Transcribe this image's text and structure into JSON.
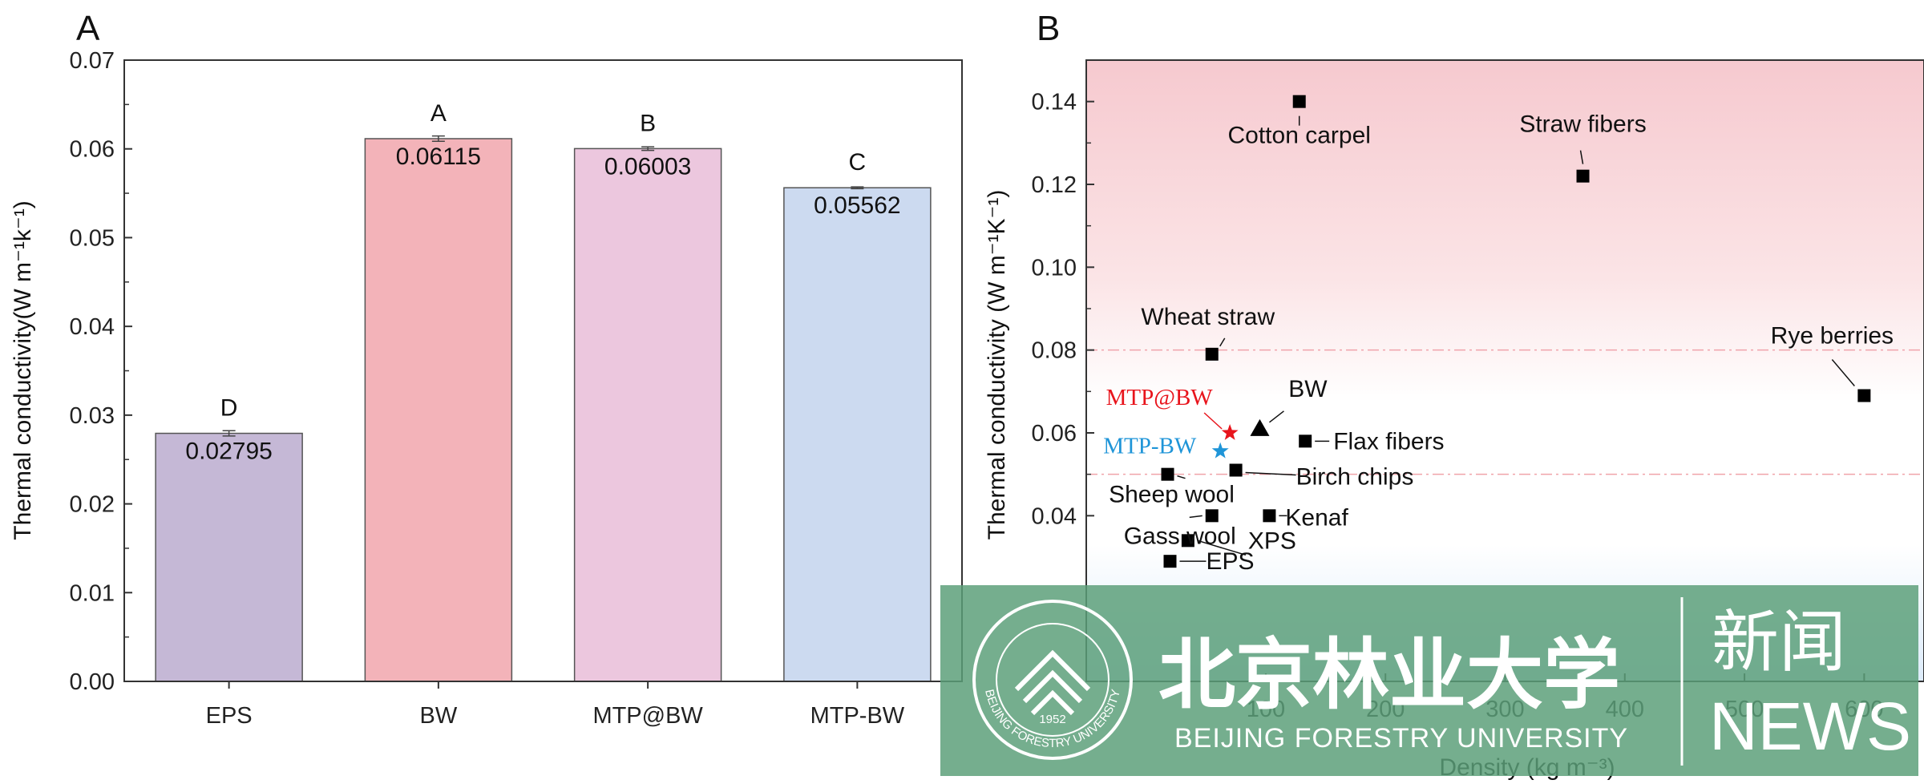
{
  "chart_data": [
    {
      "panel_label": "A",
      "type": "bar",
      "categories": [
        "EPS",
        "BW",
        "MTP@BW",
        "MTP-BW"
      ],
      "values": [
        0.02795,
        0.06115,
        0.06003,
        0.05562
      ],
      "value_labels": [
        "0.02795",
        "0.06115",
        "0.06003",
        "0.05562"
      ],
      "errors": [
        0.0003,
        0.0003,
        0.0002,
        0.0001
      ],
      "significance_letters": [
        "D",
        "A",
        "B",
        "C"
      ],
      "colors": [
        "#c5b8d6",
        "#f3b3b9",
        "#ecc7de",
        "#ccdaf0"
      ],
      "ylabel": "Thermal conductivity(W m⁻¹k⁻¹)",
      "ylim": [
        0,
        0.07
      ],
      "yticks": [
        "0.00",
        "0.01",
        "0.02",
        "0.03",
        "0.04",
        "0.05",
        "0.06",
        "0.07"
      ]
    },
    {
      "panel_label": "B",
      "type": "scatter",
      "xlabel": "Density (kg m⁻³)",
      "ylabel": "Thermal conductivity (W m⁻¹K⁻¹)",
      "xlim": [
        -50,
        650
      ],
      "ylim": [
        0.0,
        0.15
      ],
      "xticks": [
        "100",
        "200",
        "300",
        "400",
        "500",
        "600"
      ],
      "yticks": [
        "0.04",
        "0.06",
        "0.08",
        "0.10",
        "0.12",
        "0.14"
      ],
      "reference_lines": [
        0.08,
        0.05
      ],
      "points": [
        {
          "name": "Cotton carpel",
          "x": 128,
          "y": 0.14,
          "marker": "square",
          "color": "#000000"
        },
        {
          "name": "Straw fibers",
          "x": 365,
          "y": 0.122,
          "marker": "square",
          "color": "#000000"
        },
        {
          "name": "Wheat straw",
          "x": 55,
          "y": 0.079,
          "marker": "square",
          "color": "#000000"
        },
        {
          "name": "Rye berries",
          "x": 600,
          "y": 0.069,
          "marker": "square",
          "color": "#000000"
        },
        {
          "name": "BW",
          "x": 95,
          "y": 0.061,
          "marker": "triangle",
          "color": "#000000"
        },
        {
          "name": "MTP@BW",
          "x": 70,
          "y": 0.06,
          "marker": "star",
          "color": "#e8141c"
        },
        {
          "name": "MTP-BW",
          "x": 62,
          "y": 0.0556,
          "marker": "star",
          "color": "#1f95d8"
        },
        {
          "name": "Flax fibers",
          "x": 133,
          "y": 0.058,
          "marker": "square",
          "color": "#000000"
        },
        {
          "name": "Birch chips",
          "x": 75,
          "y": 0.051,
          "marker": "square",
          "color": "#000000"
        },
        {
          "name": "Sheep wool",
          "x": 18,
          "y": 0.05,
          "marker": "square",
          "color": "#000000"
        },
        {
          "name": "Kenaf",
          "x": 103,
          "y": 0.04,
          "marker": "square",
          "color": "#000000"
        },
        {
          "name": "Gass wool",
          "x": 55,
          "y": 0.04,
          "marker": "square",
          "color": "#000000"
        },
        {
          "name": "XPS",
          "x": 35,
          "y": 0.034,
          "marker": "square",
          "color": "#000000"
        },
        {
          "name": "EPS",
          "x": 20,
          "y": 0.029,
          "marker": "square",
          "color": "#000000"
        }
      ]
    }
  ],
  "watermark": {
    "chinese": "北京林业大学",
    "english": "BEIJING FORESTRY UNIVERSITY",
    "news_cn": "新闻",
    "news_en": "NEWS",
    "seal_ring": "BEIJING FORESTRY UNIVERSITY",
    "seal_year": "1952",
    "color": "#5a9e78"
  }
}
